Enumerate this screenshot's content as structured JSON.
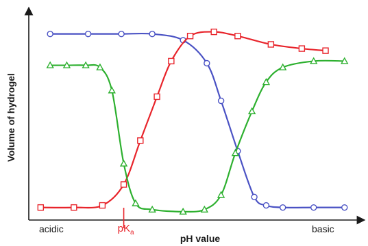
{
  "chart_data": {
    "type": "line",
    "xlabel": "pH value",
    "ylabel": "Volume of hydrogel",
    "x_tick_labels": {
      "left": "acidic",
      "right": "basic"
    },
    "pka_marker": {
      "label": "pK",
      "subscript": "a",
      "x": 4.0,
      "color": "#e8242b"
    },
    "xlim": [
      0,
      14
    ],
    "ylim": [
      0,
      100
    ],
    "grid": false,
    "series": [
      {
        "color": "#4a52c4",
        "marker": "circle",
        "x": [
          0.9,
          2.5,
          3.9,
          5.2,
          6.5,
          7.5,
          8.1,
          8.8,
          9.5,
          10.0,
          10.7,
          12.0,
          13.3
        ],
        "y": [
          89,
          89,
          89,
          89,
          86,
          75,
          57,
          33,
          11,
          7,
          6,
          6,
          6
        ]
      },
      {
        "color": "#e8242b",
        "marker": "square",
        "x": [
          0.5,
          1.9,
          3.1,
          4.0,
          4.7,
          5.4,
          6.0,
          6.8,
          7.8,
          8.8,
          10.2,
          11.5,
          12.5
        ],
        "y": [
          6,
          6,
          7,
          17,
          38,
          59,
          76,
          88,
          90,
          88,
          84,
          82,
          81
        ]
      },
      {
        "color": "#2db02f",
        "marker": "triangle",
        "x": [
          0.9,
          1.6,
          2.4,
          3.0,
          3.5,
          4.0,
          4.5,
          5.2,
          6.5,
          7.4,
          8.1,
          8.7,
          9.4,
          10.0,
          10.7,
          12.0,
          13.3
        ],
        "y": [
          74,
          74,
          74,
          73,
          62,
          27,
          8,
          5,
          4,
          5,
          12,
          32,
          52,
          66,
          73,
          76,
          76
        ]
      }
    ]
  }
}
